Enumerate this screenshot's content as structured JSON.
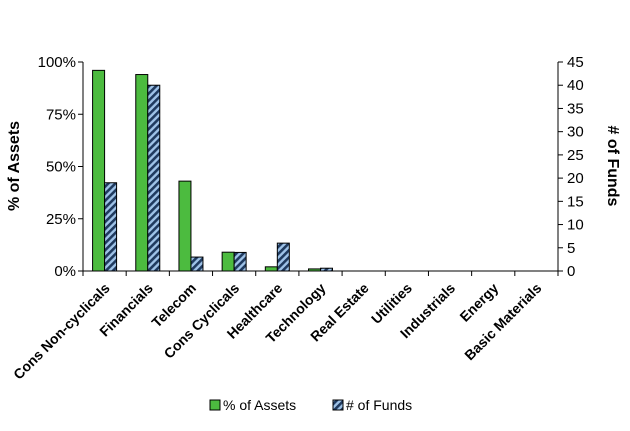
{
  "chart_data": {
    "type": "bar",
    "categories": [
      "Cons Non-cyclicals",
      "Financials",
      "Telecom",
      "Cons Cyclicals",
      "Healthcare",
      "Technology",
      "Real Estate",
      "Utilities",
      "Industrials",
      "Energy",
      "Basic Materials"
    ],
    "series": [
      {
        "name": "% of Assets",
        "axis": "left",
        "values": [
          96,
          94,
          43,
          9,
          2,
          1,
          0,
          0,
          0,
          0,
          0
        ],
        "color": "#4cbb3f",
        "pattern": "solid"
      },
      {
        "name": "# of Funds",
        "axis": "right",
        "values": [
          19,
          40,
          3,
          4,
          6,
          0.6,
          0,
          0,
          0,
          0,
          0
        ],
        "color": "#1f3a5f",
        "pattern": "diagonal-stripes"
      }
    ],
    "ylabel": "% of Assets",
    "y2label": "# of Funds",
    "ylim": [
      0,
      100
    ],
    "y2lim": [
      0,
      45
    ],
    "yticks": [
      "0%",
      "25%",
      "50%",
      "75%",
      "100%"
    ],
    "y2ticks": [
      "0",
      "5",
      "10",
      "15",
      "20",
      "25",
      "30",
      "35",
      "40",
      "45"
    ],
    "grid": false,
    "legend": "bottom"
  }
}
